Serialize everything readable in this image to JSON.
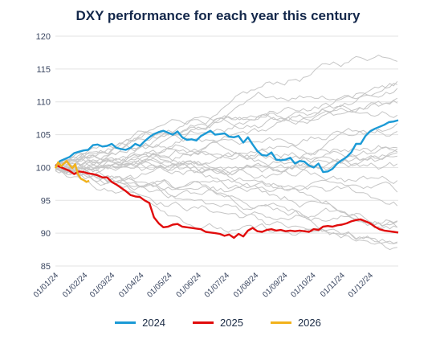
{
  "title": "DXY performance for each year this century",
  "chart_data": {
    "type": "line",
    "title": "DXY performance for each year this century",
    "xlabel": "",
    "ylabel": "",
    "ylim": [
      85,
      120
    ],
    "yticks": [
      85,
      90,
      95,
      100,
      105,
      110,
      115,
      120
    ],
    "xlim": [
      0,
      365
    ],
    "x_ticks": [
      {
        "day": 0,
        "label": "01/01/24"
      },
      {
        "day": 31,
        "label": "01/02/24"
      },
      {
        "day": 60,
        "label": "01/03/24"
      },
      {
        "day": 91,
        "label": "01/04/24"
      },
      {
        "day": 121,
        "label": "01/05/24"
      },
      {
        "day": 152,
        "label": "01/06/24"
      },
      {
        "day": 182,
        "label": "01/07/24"
      },
      {
        "day": 213,
        "label": "01/08/24"
      },
      {
        "day": 244,
        "label": "01/09/24"
      },
      {
        "day": 274,
        "label": "01/10/24"
      },
      {
        "day": 305,
        "label": "01/11/24"
      },
      {
        "day": 335,
        "label": "01/12/24"
      }
    ],
    "grid": "horizontal",
    "legend_position": "bottom",
    "series": [
      {
        "name": "2024",
        "color": "#1b9ad6",
        "highlight": true,
        "x": [
          0,
          5,
          10,
          15,
          20,
          25,
          30,
          35,
          40,
          45,
          50,
          55,
          60,
          65,
          70,
          75,
          80,
          85,
          90,
          95,
          100,
          105,
          110,
          115,
          120,
          125,
          130,
          135,
          140,
          145,
          150,
          155,
          160,
          165,
          170,
          175,
          180,
          185,
          190,
          195,
          200,
          205,
          210,
          215,
          220,
          225,
          230,
          235,
          240,
          245,
          250,
          255,
          260,
          265,
          270,
          275,
          280,
          285,
          290,
          295,
          300,
          305,
          310,
          315,
          320,
          325,
          330,
          335,
          340,
          345,
          350,
          355,
          360,
          365
        ],
        "y": [
          100.2,
          101.0,
          101.3,
          101.6,
          102.2,
          102.4,
          102.6,
          102.7,
          103.4,
          103.5,
          103.2,
          103.3,
          103.6,
          103.0,
          102.8,
          102.7,
          103.0,
          103.6,
          103.3,
          104.0,
          104.6,
          105.1,
          105.4,
          105.6,
          105.3,
          105.0,
          105.5,
          104.6,
          104.2,
          104.3,
          104.1,
          104.8,
          105.2,
          105.6,
          105.0,
          105.1,
          105.2,
          104.7,
          104.6,
          104.8,
          103.8,
          104.6,
          103.5,
          102.5,
          101.9,
          101.8,
          102.3,
          101.2,
          101.1,
          101.2,
          101.5,
          100.6,
          101.0,
          100.9,
          100.3,
          100.0,
          100.6,
          99.3,
          99.4,
          99.8,
          100.6,
          101.1,
          101.6,
          102.3,
          103.6,
          103.6,
          104.8,
          105.5,
          105.9,
          106.2,
          106.5,
          106.9,
          107.0,
          107.2
        ]
      },
      {
        "name": "2025",
        "color": "#e10c0c",
        "highlight": true,
        "x": [
          0,
          5,
          10,
          15,
          20,
          25,
          30,
          35,
          40,
          45,
          50,
          55,
          60,
          65,
          70,
          75,
          80,
          85,
          90,
          95,
          100,
          105,
          110,
          115,
          120,
          125,
          130,
          135,
          140,
          145,
          150,
          155,
          160,
          165,
          170,
          175,
          180,
          185,
          190,
          195,
          200,
          205,
          210,
          215,
          220,
          225,
          230,
          235,
          240,
          245,
          250,
          255,
          260,
          265,
          270,
          275,
          280,
          285,
          290,
          295,
          300,
          305,
          310,
          315,
          320,
          325,
          330,
          335,
          340,
          345,
          350,
          355,
          360,
          365
        ],
        "y": [
          100.4,
          100.1,
          99.8,
          99.5,
          99.0,
          99.4,
          99.3,
          99.1,
          99.0,
          98.8,
          98.5,
          98.5,
          97.8,
          97.4,
          96.9,
          96.4,
          95.8,
          95.6,
          95.5,
          95.0,
          94.6,
          92.4,
          91.5,
          90.9,
          91.0,
          91.3,
          91.4,
          91.0,
          90.9,
          90.8,
          90.7,
          90.6,
          90.2,
          90.1,
          90.0,
          89.9,
          89.6,
          89.8,
          89.3,
          89.9,
          89.5,
          90.4,
          90.8,
          90.3,
          90.2,
          90.5,
          90.6,
          90.4,
          90.5,
          90.3,
          90.4,
          90.3,
          90.4,
          90.3,
          90.2,
          90.6,
          90.5,
          91.0,
          91.1,
          91.0,
          91.2,
          91.3,
          91.5,
          91.8,
          92.0,
          92.1,
          91.8,
          91.5,
          91.0,
          90.6,
          90.4,
          90.3,
          90.2,
          90.1
        ]
      },
      {
        "name": "2026",
        "color": "#f2b21c",
        "highlight": true,
        "x": [
          0,
          3,
          6,
          9,
          12,
          15,
          18,
          21,
          24,
          27,
          30,
          33,
          36
        ],
        "y": [
          99.9,
          100.8,
          100.2,
          100.6,
          101.0,
          100.4,
          99.9,
          100.5,
          99.0,
          98.3,
          98.1,
          97.8,
          98.0
        ]
      }
    ]
  }
}
